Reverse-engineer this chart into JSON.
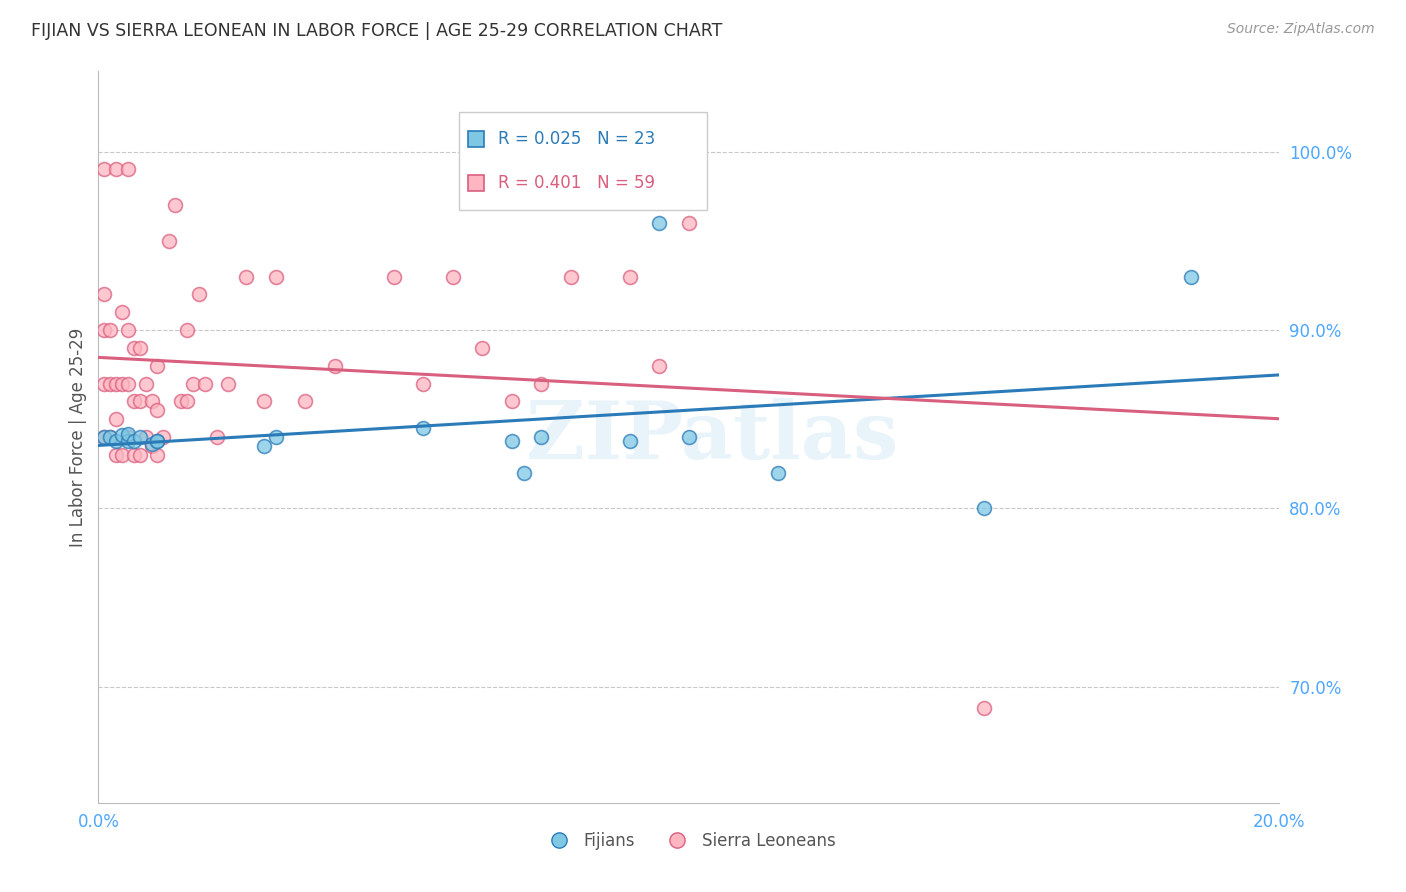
{
  "title": "FIJIAN VS SIERRA LEONEAN IN LABOR FORCE | AGE 25-29 CORRELATION CHART",
  "source": "Source: ZipAtlas.com",
  "ylabel": "In Labor Force | Age 25-29",
  "xlim": [
    0.0,
    0.2
  ],
  "ylim": [
    0.635,
    1.045
  ],
  "xticks": [
    0.0,
    0.02,
    0.04,
    0.06,
    0.08,
    0.1,
    0.12,
    0.14,
    0.16,
    0.18,
    0.2
  ],
  "yticks_right": [
    0.7,
    0.8,
    0.9,
    1.0
  ],
  "ytick_labels_right": [
    "70.0%",
    "80.0%",
    "90.0%",
    "100.0%"
  ],
  "legend_r_fijian": "R = 0.025",
  "legend_n_fijian": "N = 23",
  "legend_r_sl": "R = 0.401",
  "legend_n_sl": "N = 59",
  "legend_label_fijian": "Fijians",
  "legend_label_sl": "Sierra Leoneans",
  "fijian_color": "#7ec8e3",
  "sl_color": "#ffb6c1",
  "fijian_trend_color": "#2B7BB9",
  "sl_trend_color": "#D95F7F",
  "fijian_x": [
    0.001,
    0.002,
    0.003,
    0.004,
    0.005,
    0.005,
    0.006,
    0.007,
    0.009,
    0.01,
    0.01,
    0.028,
    0.03,
    0.055,
    0.07,
    0.072,
    0.075,
    0.09,
    0.095,
    0.1,
    0.115,
    0.15,
    0.185
  ],
  "fijian_y": [
    0.84,
    0.84,
    0.838,
    0.841,
    0.838,
    0.842,
    0.838,
    0.84,
    0.836,
    0.838,
    0.838,
    0.835,
    0.84,
    0.845,
    0.838,
    0.82,
    0.84,
    0.838,
    0.96,
    0.84,
    0.82,
    0.8,
    0.93
  ],
  "sl_x": [
    0.001,
    0.001,
    0.001,
    0.001,
    0.001,
    0.002,
    0.002,
    0.002,
    0.003,
    0.003,
    0.003,
    0.003,
    0.004,
    0.004,
    0.004,
    0.005,
    0.005,
    0.005,
    0.005,
    0.006,
    0.006,
    0.006,
    0.007,
    0.007,
    0.007,
    0.008,
    0.008,
    0.009,
    0.009,
    0.01,
    0.01,
    0.01,
    0.011,
    0.012,
    0.013,
    0.014,
    0.015,
    0.015,
    0.016,
    0.017,
    0.018,
    0.02,
    0.022,
    0.025,
    0.028,
    0.03,
    0.035,
    0.04,
    0.05,
    0.055,
    0.06,
    0.065,
    0.07,
    0.075,
    0.08,
    0.09,
    0.095,
    0.1,
    0.15
  ],
  "sl_y": [
    0.84,
    0.87,
    0.9,
    0.92,
    0.99,
    0.84,
    0.87,
    0.9,
    0.83,
    0.85,
    0.87,
    0.99,
    0.83,
    0.87,
    0.91,
    0.84,
    0.87,
    0.9,
    0.99,
    0.83,
    0.86,
    0.89,
    0.83,
    0.86,
    0.89,
    0.84,
    0.87,
    0.835,
    0.86,
    0.83,
    0.855,
    0.88,
    0.84,
    0.95,
    0.97,
    0.86,
    0.86,
    0.9,
    0.87,
    0.92,
    0.87,
    0.84,
    0.87,
    0.93,
    0.86,
    0.93,
    0.86,
    0.88,
    0.93,
    0.87,
    0.93,
    0.89,
    0.86,
    0.87,
    0.93,
    0.93,
    0.88,
    0.96,
    0.688
  ],
  "watermark": "ZIPatlas",
  "background_color": "#ffffff",
  "grid_color": "#c8c8c8",
  "title_color": "#333333",
  "axis_label_color": "#555555",
  "tick_color": "#4da6ff",
  "marker_size": 100,
  "marker_linewidth": 1.2
}
